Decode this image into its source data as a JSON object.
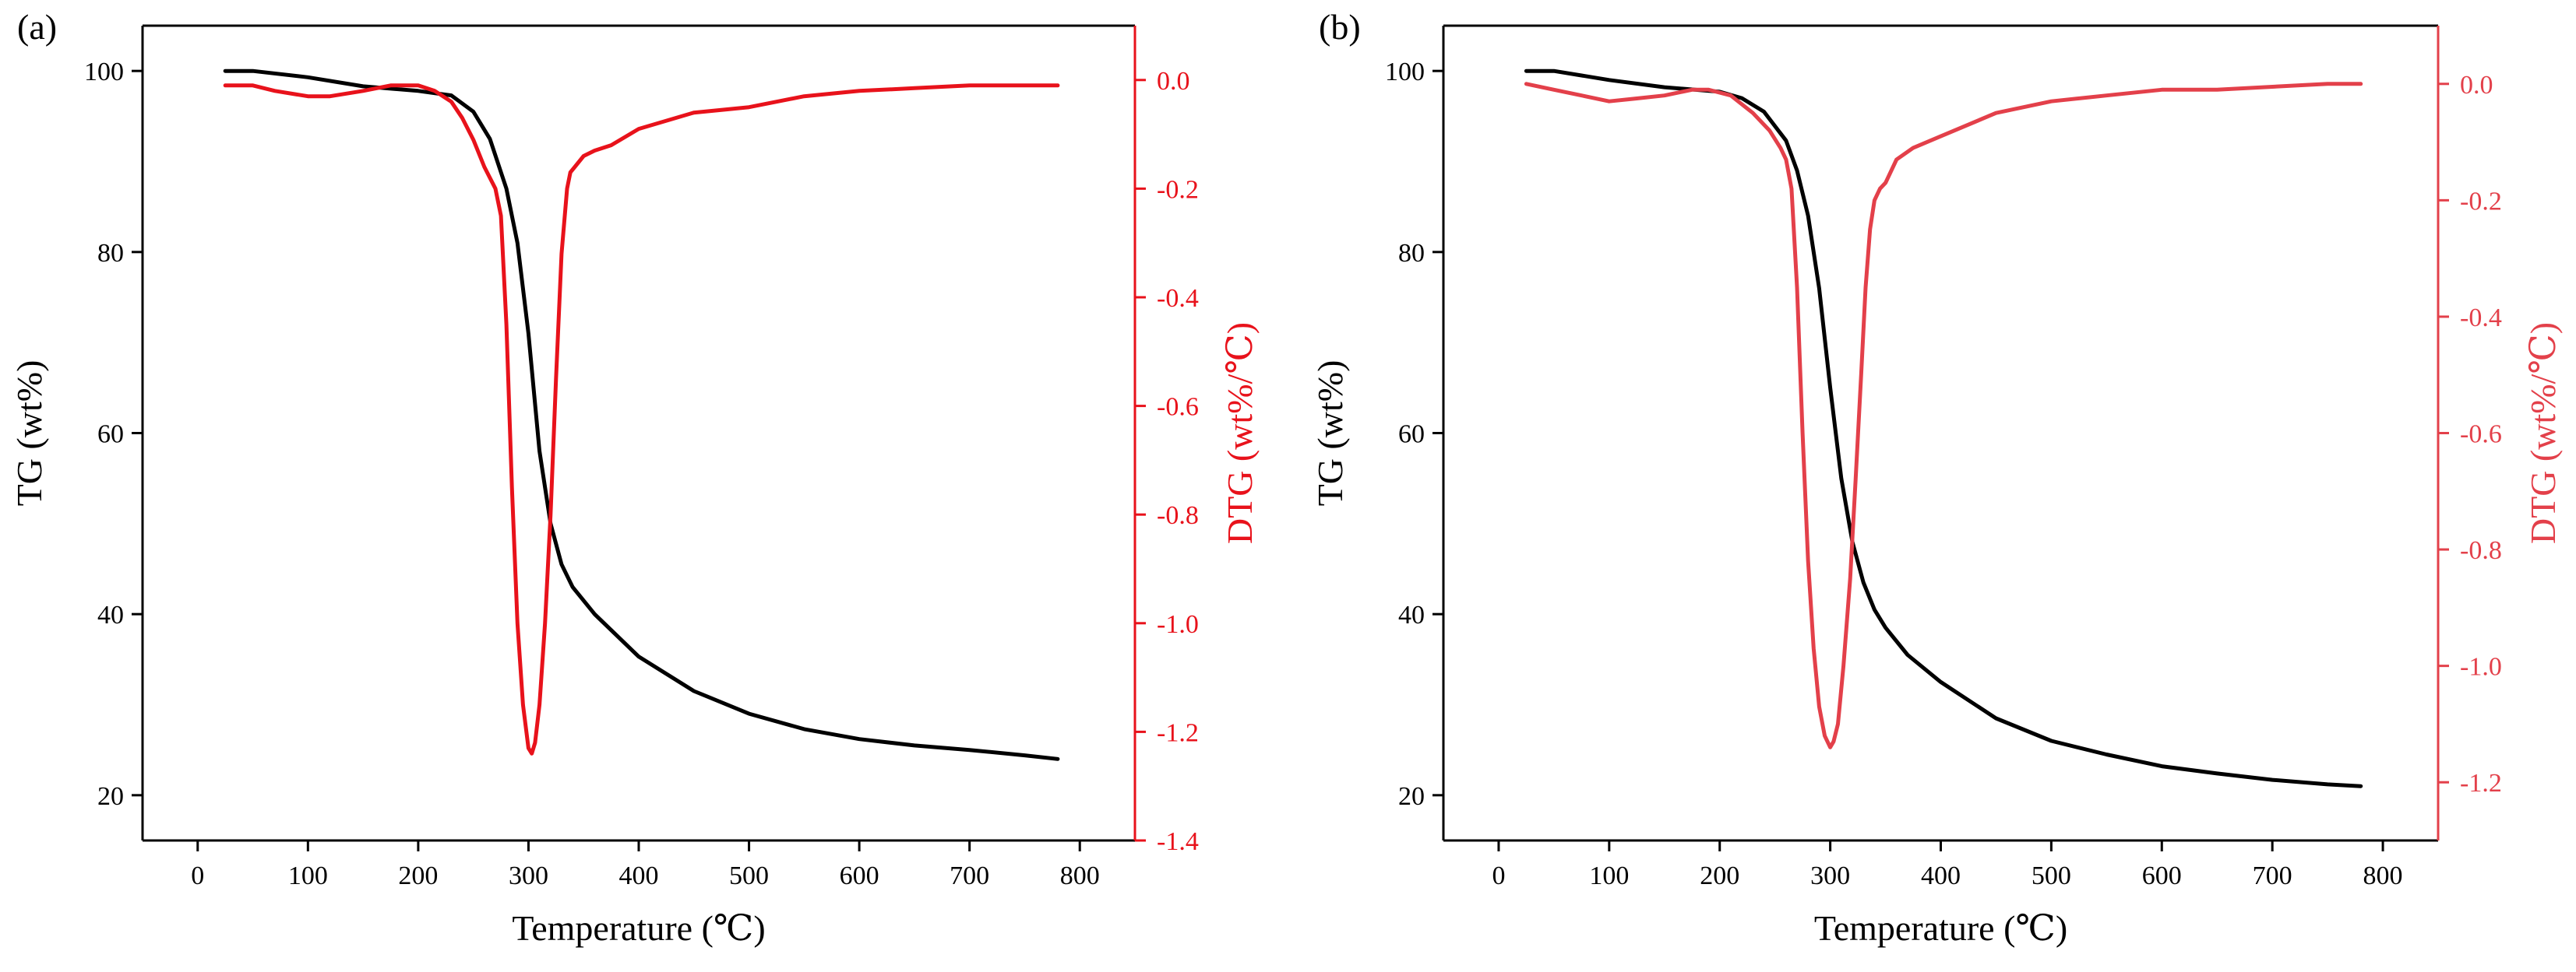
{
  "figure": {
    "colors": {
      "tg": "#000000",
      "dtg_a": "#e8121b",
      "dtg_b": "#e3404a",
      "axis": "#000000"
    }
  },
  "chart_data": [
    {
      "type": "line",
      "panel_label": "(a)",
      "xlabel": "Temperature (℃)",
      "ylabel_left": "TG (wt%)",
      "ylabel_right": "DTG (wt%/℃)",
      "xlim": [
        -50,
        850
      ],
      "ylim_left": [
        15,
        105
      ],
      "ylim_right": [
        -1.4,
        0.1
      ],
      "x_ticks": [
        0,
        100,
        200,
        300,
        400,
        500,
        600,
        700,
        800
      ],
      "y_ticks_left": [
        20,
        40,
        60,
        80,
        100
      ],
      "y_ticks_right": [
        0.0,
        -0.2,
        -0.4,
        -0.6,
        -0.8,
        -1.0,
        -1.2,
        -1.4
      ],
      "y_ticks_right_labels": [
        "0.0",
        "-0.2",
        "-0.4",
        "-0.6",
        "-0.8",
        "-1.0",
        "-1.2",
        "-1.4"
      ],
      "series": [
        {
          "name": "TG",
          "axis": "left",
          "color": "#000000",
          "x": [
            25,
            50,
            100,
            150,
            200,
            230,
            250,
            265,
            280,
            290,
            300,
            310,
            320,
            330,
            340,
            360,
            400,
            450,
            500,
            550,
            600,
            650,
            700,
            750,
            780
          ],
          "y": [
            100,
            100,
            99.3,
            98.3,
            97.8,
            97.3,
            95.5,
            92.5,
            87,
            81,
            71,
            58,
            50,
            45.5,
            43,
            40,
            35.3,
            31.5,
            29,
            27.3,
            26.2,
            25.5,
            25,
            24.4,
            24
          ]
        },
        {
          "name": "DTG",
          "axis": "right",
          "color": "#e8121b",
          "x": [
            25,
            50,
            70,
            100,
            120,
            150,
            175,
            190,
            200,
            215,
            230,
            240,
            250,
            260,
            270,
            275,
            280,
            285,
            290,
            295,
            300,
            303,
            306,
            310,
            315,
            320,
            325,
            330,
            335,
            338,
            342,
            350,
            360,
            375,
            400,
            450,
            500,
            550,
            600,
            650,
            700,
            750,
            780
          ],
          "y": [
            -0.01,
            -0.01,
            -0.02,
            -0.03,
            -0.03,
            -0.02,
            -0.01,
            -0.01,
            -0.01,
            -0.02,
            -0.04,
            -0.07,
            -0.11,
            -0.16,
            -0.2,
            -0.25,
            -0.45,
            -0.75,
            -1.0,
            -1.15,
            -1.23,
            -1.24,
            -1.22,
            -1.15,
            -1.0,
            -0.8,
            -0.55,
            -0.32,
            -0.2,
            -0.17,
            -0.16,
            -0.14,
            -0.13,
            -0.12,
            -0.09,
            -0.06,
            -0.05,
            -0.03,
            -0.02,
            -0.015,
            -0.01,
            -0.01,
            -0.01
          ]
        }
      ]
    },
    {
      "type": "line",
      "panel_label": "(b)",
      "xlabel": "Temperature (℃)",
      "ylabel_left": "TG (wt%)",
      "ylabel_right": "DTG (wt%/℃)",
      "xlim": [
        -50,
        850
      ],
      "ylim_left": [
        15,
        105
      ],
      "ylim_right": [
        -1.3,
        0.1
      ],
      "x_ticks": [
        0,
        100,
        200,
        300,
        400,
        500,
        600,
        700,
        800
      ],
      "y_ticks_left": [
        20,
        40,
        60,
        80,
        100
      ],
      "y_ticks_right": [
        0.0,
        -0.2,
        -0.4,
        -0.6,
        -0.8,
        -1.0,
        -1.2
      ],
      "y_ticks_right_labels": [
        "0.0",
        "-0.2",
        "-0.4",
        "-0.6",
        "-0.8",
        "-1.0",
        "-1.2"
      ],
      "series": [
        {
          "name": "TG",
          "axis": "left",
          "color": "#000000",
          "x": [
            25,
            50,
            100,
            150,
            200,
            220,
            240,
            260,
            270,
            280,
            290,
            300,
            310,
            320,
            330,
            340,
            350,
            370,
            400,
            450,
            500,
            550,
            600,
            650,
            700,
            750,
            780
          ],
          "y": [
            100,
            100,
            99,
            98.2,
            97.7,
            97,
            95.5,
            92.3,
            89,
            84,
            76,
            65,
            55,
            48,
            43.5,
            40.5,
            38.5,
            35.5,
            32.5,
            28.5,
            26,
            24.5,
            23.2,
            22.4,
            21.7,
            21.2,
            21
          ]
        },
        {
          "name": "DTG",
          "axis": "right",
          "color": "#e3404a",
          "x": [
            25,
            50,
            75,
            100,
            125,
            150,
            175,
            190,
            210,
            230,
            245,
            255,
            260,
            265,
            270,
            275,
            280,
            285,
            290,
            295,
            300,
            303,
            307,
            312,
            318,
            323,
            328,
            332,
            336,
            340,
            345,
            350,
            360,
            375,
            400,
            450,
            500,
            550,
            600,
            650,
            700,
            750,
            780
          ],
          "y": [
            0.0,
            -0.01,
            -0.02,
            -0.03,
            -0.025,
            -0.02,
            -0.01,
            -0.01,
            -0.02,
            -0.05,
            -0.08,
            -0.11,
            -0.13,
            -0.18,
            -0.35,
            -0.6,
            -0.82,
            -0.97,
            -1.07,
            -1.12,
            -1.14,
            -1.13,
            -1.1,
            -1.0,
            -0.85,
            -0.68,
            -0.5,
            -0.35,
            -0.25,
            -0.2,
            -0.18,
            -0.17,
            -0.13,
            -0.11,
            -0.09,
            -0.05,
            -0.03,
            -0.02,
            -0.01,
            -0.01,
            -0.005,
            0.0,
            0.0
          ]
        }
      ]
    }
  ]
}
